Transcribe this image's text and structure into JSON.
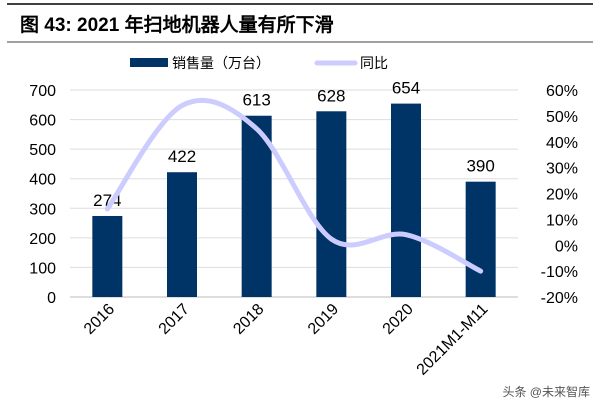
{
  "figure": {
    "title": "图 43:  2021 年扫地机器人量有所下滑",
    "watermark": "头条 @未来智库"
  },
  "chart_data": {
    "type": "bar",
    "title": "",
    "categories": [
      "2016",
      "2017",
      "2018",
      "2019",
      "2020",
      "2021M1-M11"
    ],
    "series": [
      {
        "name": "销售量（万台）",
        "type": "bar",
        "axis": "left",
        "color": "#003366",
        "values": [
          274,
          422,
          613,
          628,
          654,
          390
        ],
        "labels": [
          "274",
          "422",
          "613",
          "628",
          "654",
          "390"
        ]
      },
      {
        "name": "同比",
        "type": "line",
        "smooth": true,
        "axis": "right",
        "color": "#ccccff",
        "values": [
          14,
          54,
          45,
          2.4,
          4.1,
          -10
        ]
      }
    ],
    "ylim_left": [
      0,
      700
    ],
    "yticks_left": [
      "0",
      "100",
      "200",
      "300",
      "400",
      "500",
      "600",
      "700"
    ],
    "ylim_right": [
      -20,
      60
    ],
    "yticks_right": [
      "-20%",
      "-10%",
      "0%",
      "10%",
      "20%",
      "30%",
      "40%",
      "50%",
      "60%"
    ],
    "grid": true,
    "legend": "top"
  }
}
